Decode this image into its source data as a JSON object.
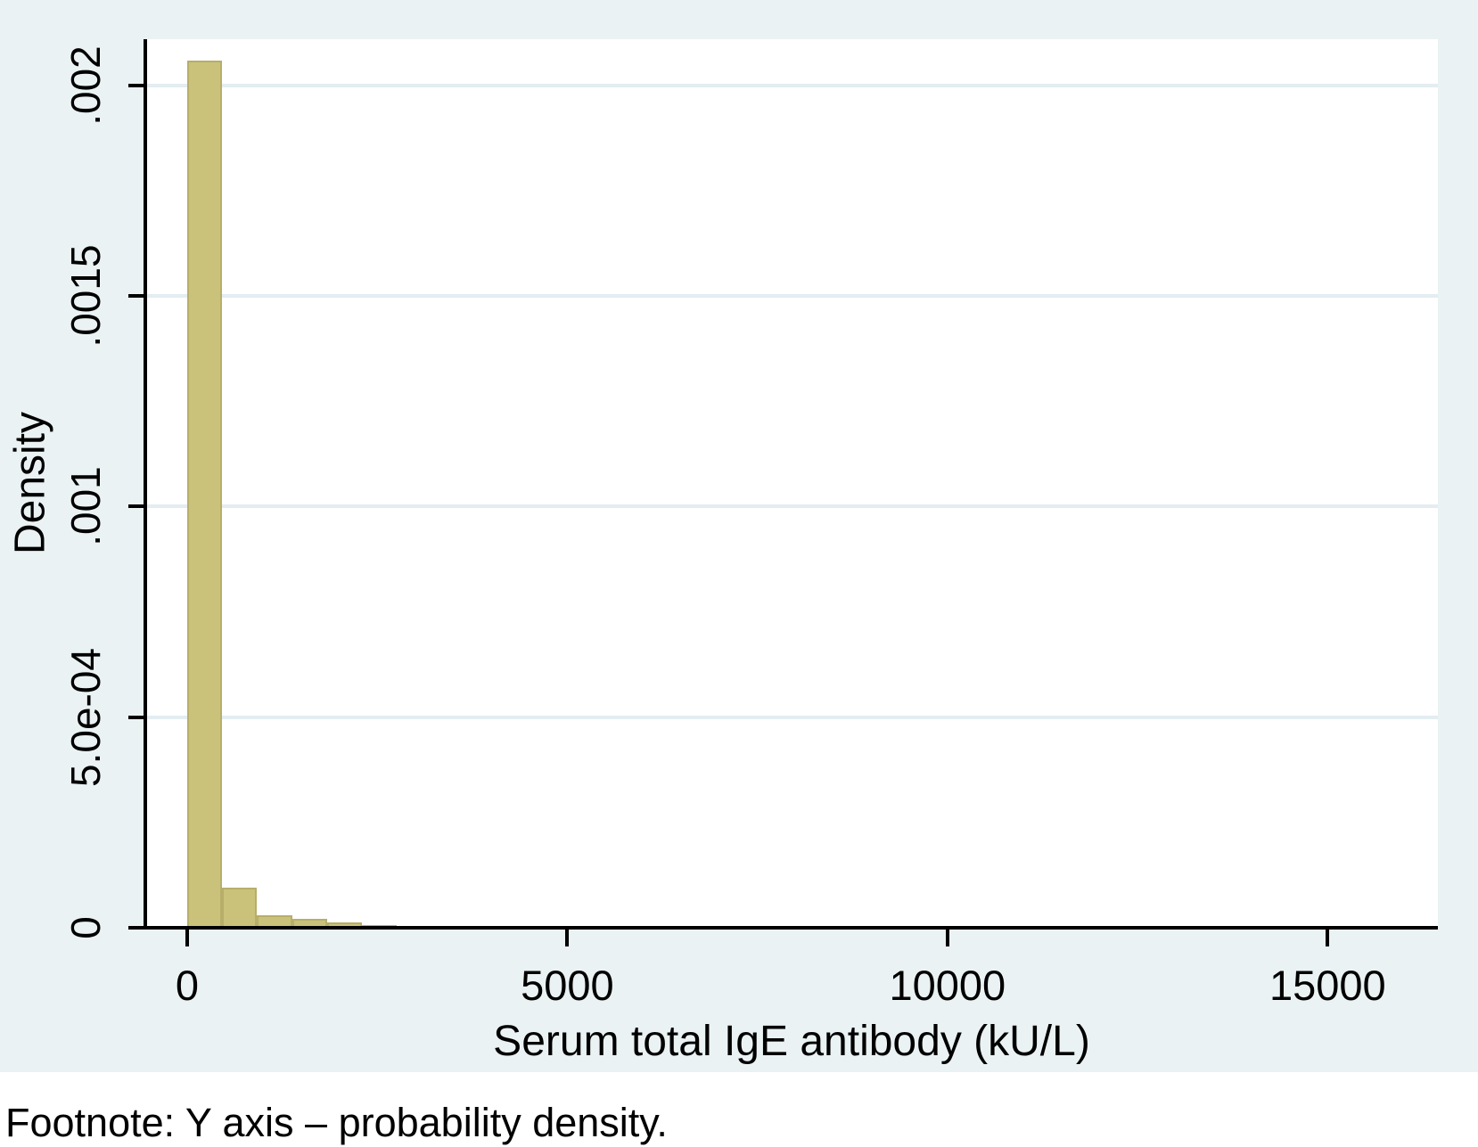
{
  "figure": {
    "background_color": "#eaf2f3",
    "footnote": "Footnote: Y axis – probability density."
  },
  "chart_data": {
    "type": "bar",
    "subtype": "histogram",
    "title": "",
    "xlabel": "Serum total IgE antibody (kU/L)",
    "ylabel": "Density",
    "legend": "none",
    "grid": "horizontal-only",
    "xlim": [
      -550,
      16450
    ],
    "ylim": [
      0,
      0.00211
    ],
    "bin_width": 460,
    "bins": [
      {
        "x0": 0,
        "density": 0.00206
      },
      {
        "x0": 460,
        "density": 9.5e-05
      },
      {
        "x0": 920,
        "density": 3e-05
      },
      {
        "x0": 1380,
        "density": 2.1e-05
      },
      {
        "x0": 1840,
        "density": 1.3e-05
      },
      {
        "x0": 2300,
        "density": 7e-06
      },
      {
        "x0": 2760,
        "density": 3e-06
      },
      {
        "x0": 3220,
        "density": 3e-06
      },
      {
        "x0": 3680,
        "density": 3e-06
      },
      {
        "x0": 4140,
        "density": 3e-06
      },
      {
        "x0": 4600,
        "density": 3e-06
      },
      {
        "x0": 5060,
        "density": 3e-06
      },
      {
        "x0": 5520,
        "density": 2e-06
      },
      {
        "x0": 5980,
        "density": 4e-06
      },
      {
        "x0": 6440,
        "density": 2e-06
      },
      {
        "x0": 6900,
        "density": 4e-06
      },
      {
        "x0": 7360,
        "density": 2e-06
      },
      {
        "x0": 7820,
        "density": 4e-06
      },
      {
        "x0": 8280,
        "density": 2e-06
      },
      {
        "x0": 15640,
        "density": 4e-06
      }
    ],
    "x_ticks": [
      {
        "value": 0,
        "label": "0"
      },
      {
        "value": 5000,
        "label": "5000"
      },
      {
        "value": 10000,
        "label": "10000"
      },
      {
        "value": 15000,
        "label": "15000"
      }
    ],
    "y_ticks": [
      {
        "value": 0,
        "label": "0"
      },
      {
        "value": 0.0005,
        "label": "5.0e-04"
      },
      {
        "value": 0.001,
        "label": ".001"
      },
      {
        "value": 0.0015,
        "label": ".0015"
      },
      {
        "value": 0.002,
        "label": ".002"
      }
    ],
    "colors": {
      "bar_fill": "#cac17b",
      "bar_border": "#b7ae6a",
      "plot_background": "#ffffff",
      "gridline": "#e3edf2",
      "axis": "#000000",
      "text": "#000000"
    }
  }
}
